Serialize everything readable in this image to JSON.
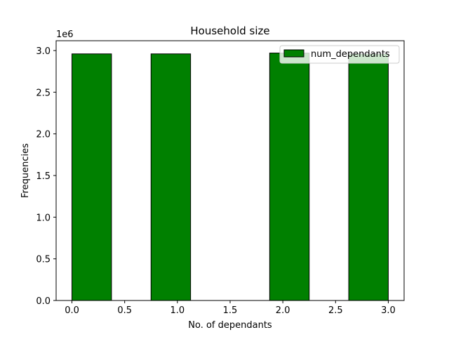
{
  "chart_data": {
    "type": "bar",
    "title": "Household size",
    "xlabel": "No. of dependants",
    "ylabel": "Frequencies",
    "y_offset_label": "1e6",
    "xlim": [
      -0.15,
      3.15
    ],
    "ylim": [
      0,
      3.0
    ],
    "xticks": [
      "0.0",
      "0.5",
      "1.0",
      "1.5",
      "2.0",
      "2.5",
      "3.0"
    ],
    "yticks": [
      "0.0",
      "0.5",
      "1.0",
      "1.5",
      "2.0",
      "2.5",
      "3.0"
    ],
    "bars": [
      {
        "x0": 0.0,
        "x1": 0.375,
        "value": 2.96
      },
      {
        "x0": 0.75,
        "x1": 1.125,
        "value": 2.96
      },
      {
        "x0": 1.875,
        "x1": 2.25,
        "value": 2.97
      },
      {
        "x0": 2.625,
        "x1": 3.0,
        "value": 2.96
      }
    ],
    "series": [
      {
        "name": "num_dependants",
        "color": "#008000"
      }
    ],
    "bar_color": "#008000",
    "edge_color": "#000000",
    "legend_position": "top-right",
    "grid": false
  }
}
